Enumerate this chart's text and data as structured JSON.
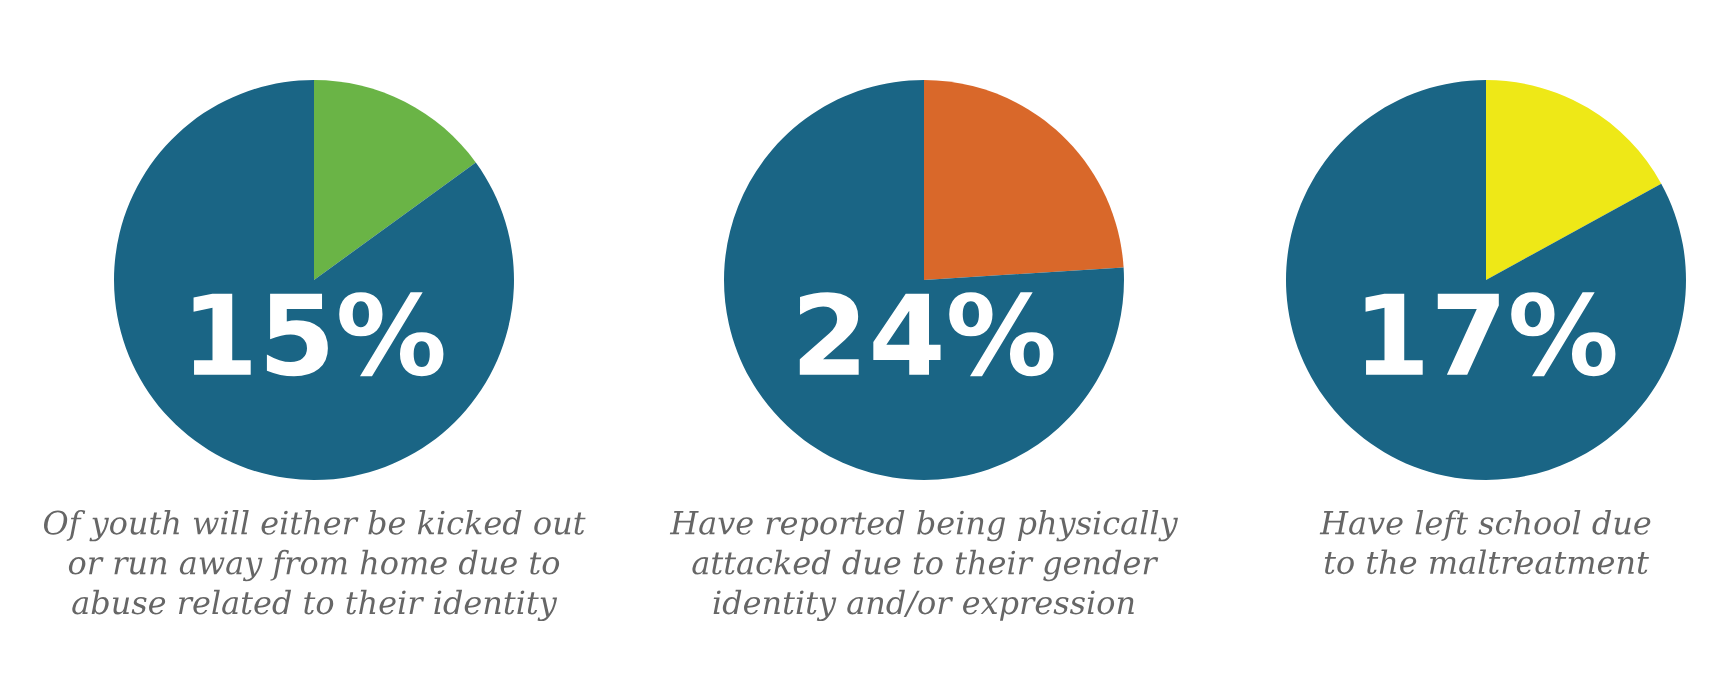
{
  "chart_data": [
    {
      "type": "pie",
      "categories": [
        null,
        null
      ],
      "values": [
        15,
        85
      ],
      "colors": [
        "#6ab446",
        "#1a6585"
      ],
      "annotations": [
        "15%",
        "Of youth will either be kicked out\nor run away from home due to\nabuse related to their identity"
      ]
    },
    {
      "type": "pie",
      "categories": [
        null,
        null
      ],
      "values": [
        24,
        76
      ],
      "colors": [
        "#d9682a",
        "#1a6585"
      ],
      "annotations": [
        "24%",
        "Have reported being physically\nattacked due to their gender\nidentity and/or expression"
      ]
    },
    {
      "type": "pie",
      "categories": [
        null,
        null
      ],
      "values": [
        17,
        83
      ],
      "colors": [
        "#eee817",
        "#1a6585"
      ],
      "annotations": [
        "17%",
        "Have left school due\nto the maltreatment"
      ]
    }
  ]
}
